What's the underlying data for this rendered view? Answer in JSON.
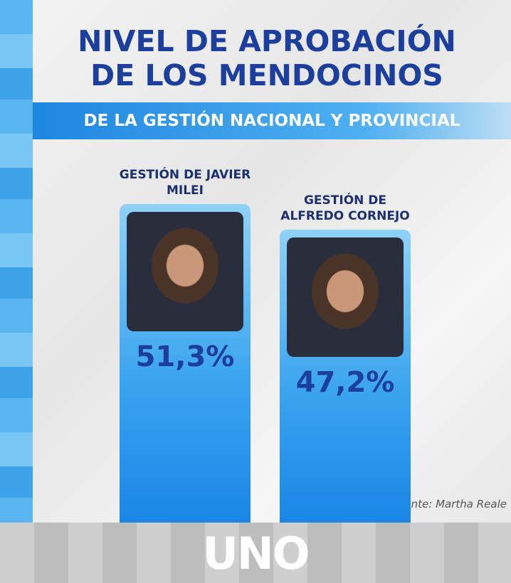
{
  "chart_data": {
    "type": "bar",
    "title": "NIVEL DE APROBACIÓN DE LOS MENDOCINOS",
    "subtitle": "DE LA GESTIÓN NACIONAL Y PROVINCIAL",
    "categories": [
      "GESTIÓN DE JAVIER MILEI",
      "GESTIÓN DE ALFREDO CORNEJO"
    ],
    "values": [
      51.3,
      47.2
    ],
    "value_labels": [
      "51,3%",
      "47,2%"
    ],
    "color": "#3aa4ef",
    "source": "Fuente: Martha Reale",
    "brand": "UNO"
  }
}
